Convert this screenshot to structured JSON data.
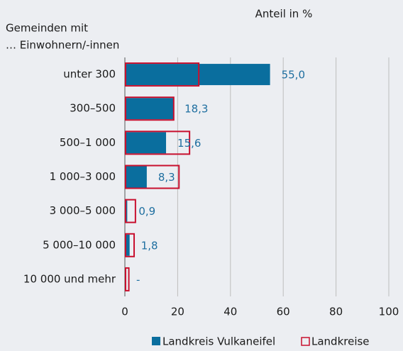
{
  "chart_data": {
    "type": "bar",
    "orientation": "horizontal",
    "title": "Anteil in %",
    "y_label": [
      "Gemeinden mit",
      "… Einwohnern/-innen"
    ],
    "categories": [
      "unter 300",
      "300–500",
      "500–1 000",
      "1 000–3 000",
      "3 000–5 000",
      "5 000–10 000",
      "10 000 und mehr"
    ],
    "series": [
      {
        "name": "Landkreis Vulkaneifel",
        "color": "#0a6e9e",
        "style": "filled",
        "values": [
          55.0,
          18.3,
          15.6,
          8.3,
          0.9,
          1.8,
          null
        ],
        "value_labels": [
          "55,0",
          "18,3",
          "15,6",
          "8,3",
          "0,9",
          "1,8",
          "-"
        ]
      },
      {
        "name": "Landkreise",
        "color": "#c8102e",
        "style": "outline",
        "values": [
          28,
          18.5,
          24.5,
          20.5,
          4,
          3.5,
          1.5
        ]
      }
    ],
    "xlim": [
      0,
      100
    ],
    "xticks": [
      0,
      20,
      40,
      60,
      80,
      100
    ],
    "grid": true
  }
}
